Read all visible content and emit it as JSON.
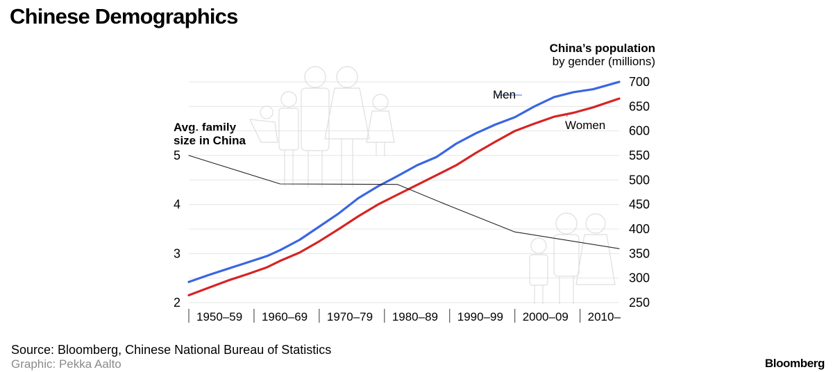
{
  "page": {
    "title": "Chinese Demographics",
    "source": "Source: Bloomberg, Chinese National Bureau of Statistics",
    "credit": "Graphic: Pekka Aalto",
    "brand": "Bloomberg"
  },
  "chart_data": {
    "type": "line",
    "title": "Chinese Demographics",
    "categories": [
      "1950–59",
      "1960–69",
      "1970–79",
      "1980–89",
      "1990–99",
      "2000–09",
      "2010–"
    ],
    "x_range": [
      1950,
      2016
    ],
    "right_axis": {
      "title_bold": "China’s population",
      "title_rest": "by gender (millions)",
      "ylim": [
        250,
        700
      ],
      "ticks": [
        700,
        650,
        600,
        550,
        500,
        450,
        400,
        350,
        300,
        250
      ]
    },
    "left_axis": {
      "title_line1": "Avg. family",
      "title_line2": "size in China",
      "ylim": [
        2,
        6.5
      ],
      "ticks": [
        5,
        4,
        3,
        2
      ]
    },
    "series": [
      {
        "name": "Men",
        "axis": "right",
        "color": "#3a66e0",
        "x": [
          1950,
          1953,
          1956,
          1959,
          1962,
          1964,
          1967,
          1970,
          1973,
          1976,
          1979,
          1982,
          1985,
          1988,
          1991,
          1994,
          1997,
          2000,
          2003,
          2006,
          2009,
          2012,
          2016
        ],
        "values": [
          292,
          306,
          319,
          332,
          345,
          357,
          378,
          405,
          432,
          463,
          487,
          508,
          530,
          547,
          574,
          595,
          613,
          628,
          650,
          669,
          679,
          685,
          700
        ]
      },
      {
        "name": "Women",
        "axis": "right",
        "color": "#d62424",
        "x": [
          1950,
          1953,
          1956,
          1959,
          1962,
          1964,
          1967,
          1970,
          1973,
          1976,
          1979,
          1982,
          1985,
          1988,
          1991,
          1994,
          1997,
          2000,
          2003,
          2006,
          2009,
          2012,
          2016
        ],
        "values": [
          265,
          280,
          295,
          308,
          322,
          335,
          352,
          375,
          400,
          426,
          450,
          470,
          490,
          510,
          530,
          555,
          578,
          600,
          615,
          629,
          637,
          648,
          666
        ]
      },
      {
        "name": "Avg. family size",
        "axis": "left",
        "color": "#222222",
        "x": [
          1950,
          1964,
          1982,
          1990,
          2000,
          2016
        ],
        "values": [
          5.0,
          4.42,
          4.41,
          3.97,
          3.44,
          3.1
        ]
      }
    ]
  }
}
